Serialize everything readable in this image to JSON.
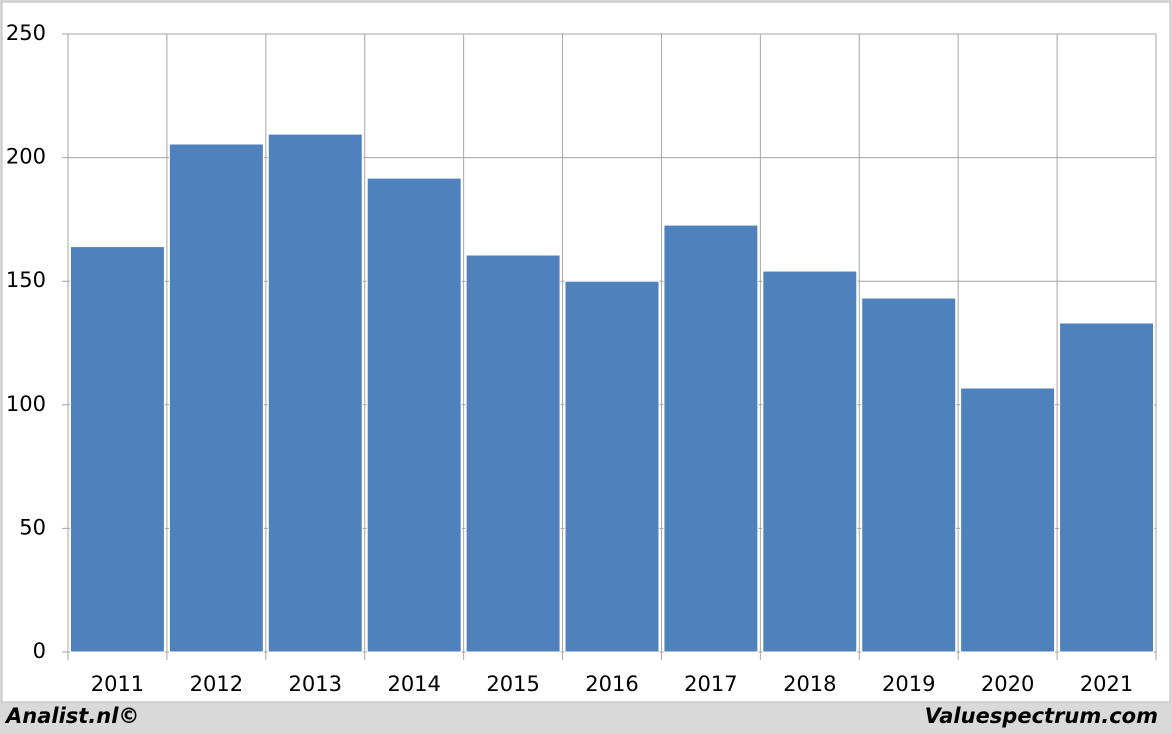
{
  "chart_data": {
    "type": "bar",
    "categories": [
      "2011",
      "2012",
      "2013",
      "2014",
      "2015",
      "2016",
      "2017",
      "2018",
      "2019",
      "2020",
      "2021"
    ],
    "values": [
      164,
      205.5,
      209.5,
      191.7,
      160.6,
      150,
      172.7,
      154.1,
      143.2,
      106.8,
      133.1
    ],
    "color": "#4f81bd",
    "ylim": [
      0,
      250
    ],
    "yticks": [
      0,
      50,
      100,
      150,
      200,
      250
    ],
    "grid": true,
    "credits": [
      "Analist.nl©",
      "Valuespectrum.com"
    ]
  }
}
